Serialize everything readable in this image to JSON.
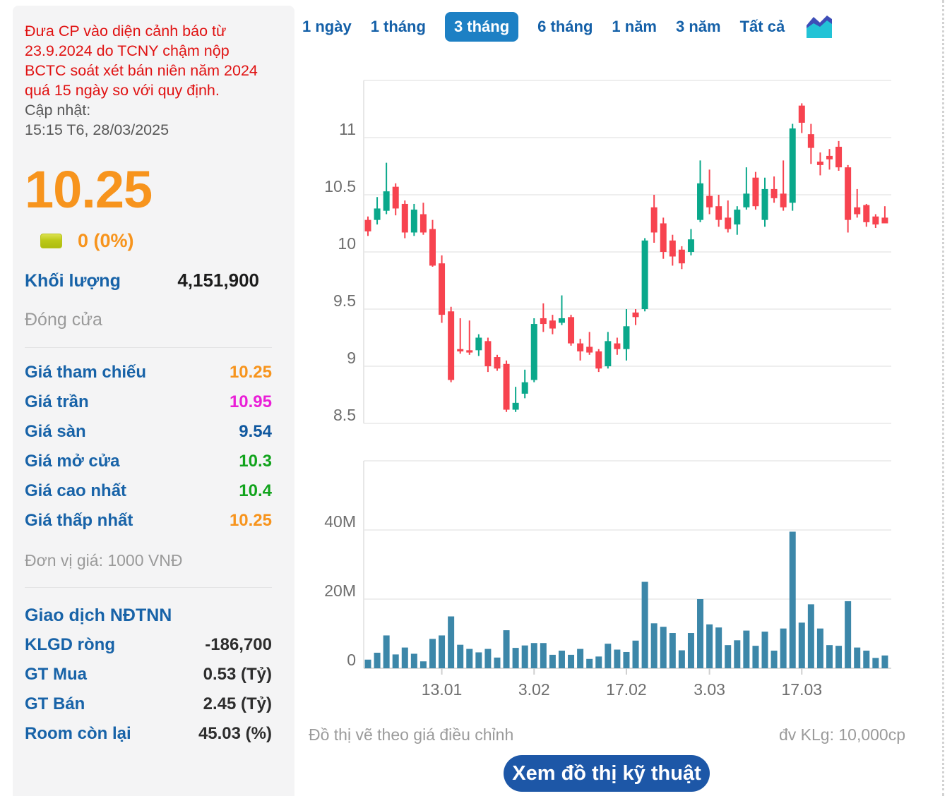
{
  "sidebar": {
    "warning": "Đưa CP vào diện cảnh báo từ 23.9.2024 do TCNY chậm nộp BCTC soát xét bán niên năm 2024 quá 15 ngày so với quy định.",
    "updated_label": "Cập nhật:",
    "updated_time": "15:15 T6, 28/03/2025",
    "price": "10.25",
    "change": "0 (0%)",
    "volume_label": "Khối lượng",
    "volume_value": "4,151,900",
    "session_status": "Đóng cửa",
    "price_table": {
      "rows": [
        {
          "label": "Giá tham chiếu",
          "value": "10.25",
          "color": "#f7941d"
        },
        {
          "label": "Giá trần",
          "value": "10.95",
          "color": "#ea1fd7"
        },
        {
          "label": "Giá sàn",
          "value": "9.54",
          "color": "#10589f"
        },
        {
          "label": "Giá mở cửa",
          "value": "10.3",
          "color": "#11a31c"
        },
        {
          "label": "Giá cao nhất",
          "value": "10.4",
          "color": "#11a31c"
        },
        {
          "label": "Giá thấp nhất",
          "value": "10.25",
          "color": "#f7941d"
        }
      ]
    },
    "price_unit_note": "Đơn vị giá: 1000 VNĐ",
    "foreign_section": {
      "title": "Giao dịch NĐTNN",
      "rows": [
        {
          "label": "KLGD ròng",
          "value": "-186,700"
        },
        {
          "label": "GT Mua",
          "value": "0.53 (Tỷ)"
        },
        {
          "label": "GT Bán",
          "value": "2.45 (Tỷ)"
        },
        {
          "label": "Room còn lại",
          "value": "45.03 (%)"
        }
      ]
    },
    "colors": {
      "accent_orange": "#f7941d",
      "label_blue": "#1863a8",
      "warning_red": "#e01212",
      "badge_yellow_green": "#bcc918"
    }
  },
  "toolbar": {
    "tabs": [
      {
        "label": "1 ngày"
      },
      {
        "label": "1 tháng"
      },
      {
        "label": "3 tháng"
      },
      {
        "label": "6 tháng"
      },
      {
        "label": "1 năm"
      },
      {
        "label": "3 năm"
      },
      {
        "label": "Tất cả"
      }
    ],
    "active_tab": "3 tháng",
    "chart_type_icon": "area-chart-icon",
    "active_bg": "#1d80c4",
    "tab_text_color": "#1460a8"
  },
  "footer": {
    "left_note": "Đồ thị vẽ theo giá điều chỉnh",
    "right_note": "đv KLg: 10,000cp",
    "button_label": "Xem đồ thị kỹ thuật"
  },
  "chart_data": {
    "type": "candlestick",
    "subtype": "price-with-volume",
    "price_axis": {
      "ticks": [
        11,
        10.5,
        10,
        9.5,
        9,
        8.5
      ],
      "min": 8.5,
      "max": 11.5,
      "grid": true
    },
    "volume_axis": {
      "ticks": [
        {
          "value": 0,
          "label": "0"
        },
        {
          "value": 20,
          "label": "20M"
        },
        {
          "value": 40,
          "label": "40M"
        }
      ],
      "max": 60,
      "unit": "M shares"
    },
    "x_ticks": [
      {
        "index": 8,
        "label": "13.01"
      },
      {
        "index": 18,
        "label": "3.02"
      },
      {
        "index": 28,
        "label": "17.02"
      },
      {
        "index": 37,
        "label": "3.03"
      },
      {
        "index": 47,
        "label": "17.03"
      }
    ],
    "ohlc": [
      [
        10.28,
        10.31,
        10.14,
        10.18
      ],
      [
        10.28,
        10.48,
        10.24,
        10.38
      ],
      [
        10.36,
        10.78,
        10.33,
        10.53
      ],
      [
        10.57,
        10.6,
        10.32,
        10.38
      ],
      [
        10.42,
        10.45,
        10.12,
        10.17
      ],
      [
        10.17,
        10.42,
        10.14,
        10.37
      ],
      [
        10.33,
        10.43,
        10.15,
        10.17
      ],
      [
        10.2,
        10.28,
        9.87,
        9.88
      ],
      [
        9.9,
        9.97,
        9.38,
        9.45
      ],
      [
        9.48,
        9.52,
        8.86,
        8.88
      ],
      [
        9.15,
        9.42,
        9.11,
        9.13
      ],
      [
        9.14,
        9.4,
        9.1,
        9.12
      ],
      [
        9.14,
        9.28,
        9.09,
        9.25
      ],
      [
        9.22,
        9.25,
        8.95,
        9.0
      ],
      [
        9.08,
        9.1,
        8.96,
        8.98
      ],
      [
        9.02,
        9.05,
        8.6,
        8.62
      ],
      [
        8.62,
        8.82,
        8.6,
        8.68
      ],
      [
        8.76,
        8.97,
        8.72,
        8.86
      ],
      [
        8.88,
        9.42,
        8.86,
        9.37
      ],
      [
        9.42,
        9.55,
        9.3,
        9.37
      ],
      [
        9.4,
        9.45,
        9.28,
        9.33
      ],
      [
        9.38,
        9.62,
        9.36,
        9.42
      ],
      [
        9.43,
        9.45,
        9.18,
        9.2
      ],
      [
        9.2,
        9.24,
        9.05,
        9.13
      ],
      [
        9.17,
        9.3,
        9.1,
        9.12
      ],
      [
        9.13,
        9.15,
        8.95,
        8.98
      ],
      [
        9.0,
        9.3,
        8.98,
        9.22
      ],
      [
        9.2,
        9.25,
        9.1,
        9.15
      ],
      [
        9.15,
        9.5,
        9.05,
        9.35
      ],
      [
        9.47,
        9.5,
        9.36,
        9.43
      ],
      [
        9.5,
        10.12,
        9.48,
        10.1
      ],
      [
        10.39,
        10.5,
        10.08,
        10.17
      ],
      [
        10.25,
        10.3,
        9.94,
        10.0
      ],
      [
        10.1,
        10.15,
        9.88,
        9.96
      ],
      [
        10.02,
        10.05,
        9.85,
        9.9
      ],
      [
        10.0,
        10.2,
        9.97,
        10.11
      ],
      [
        10.28,
        10.8,
        10.26,
        10.6
      ],
      [
        10.49,
        10.72,
        10.33,
        10.39
      ],
      [
        10.4,
        10.5,
        10.22,
        10.28
      ],
      [
        10.3,
        10.45,
        10.17,
        10.2
      ],
      [
        10.24,
        10.4,
        10.15,
        10.37
      ],
      [
        10.39,
        10.74,
        10.37,
        10.51
      ],
      [
        10.65,
        10.7,
        10.37,
        10.4
      ],
      [
        10.28,
        10.65,
        10.22,
        10.55
      ],
      [
        10.55,
        10.66,
        10.43,
        10.47
      ],
      [
        10.51,
        10.8,
        10.36,
        10.39
      ],
      [
        10.43,
        11.12,
        10.36,
        11.08
      ],
      [
        11.28,
        11.3,
        11.04,
        11.13
      ],
      [
        11.03,
        11.12,
        10.77,
        10.91
      ],
      [
        10.79,
        10.87,
        10.67,
        10.76
      ],
      [
        10.84,
        10.9,
        10.72,
        10.81
      ],
      [
        10.92,
        10.97,
        10.71,
        10.74
      ],
      [
        10.74,
        10.76,
        10.17,
        10.28
      ],
      [
        10.39,
        10.55,
        10.3,
        10.33
      ],
      [
        10.41,
        10.42,
        10.22,
        10.26
      ],
      [
        10.31,
        10.33,
        10.21,
        10.24
      ],
      [
        10.3,
        10.4,
        10.25,
        10.25
      ]
    ],
    "volume_m": [
      2.5,
      4.5,
      9.5,
      4.0,
      6.0,
      4.2,
      2.0,
      8.5,
      9.5,
      15.0,
      6.8,
      5.6,
      4.6,
      5.6,
      3.1,
      11.0,
      5.9,
      6.6,
      7.3,
      7.3,
      3.9,
      5.1,
      3.9,
      5.6,
      2.7,
      3.4,
      7.1,
      5.4,
      4.7,
      8.0,
      25.0,
      13.0,
      12.0,
      10.2,
      5.2,
      10.2,
      20.0,
      12.7,
      11.8,
      6.7,
      8.1,
      10.9,
      6.5,
      10.6,
      5.1,
      11.5,
      39.5,
      13.2,
      18.5,
      11.5,
      6.7,
      6.5,
      19.4,
      6.0,
      5.1,
      3.0,
      3.7
    ],
    "colors": {
      "up": "#0aa88b",
      "down": "#f7434f",
      "volume": "#3c87a9",
      "grid": "#e8e8e8",
      "axis": "#cfcfcf",
      "label": "#6e6e6e"
    }
  }
}
